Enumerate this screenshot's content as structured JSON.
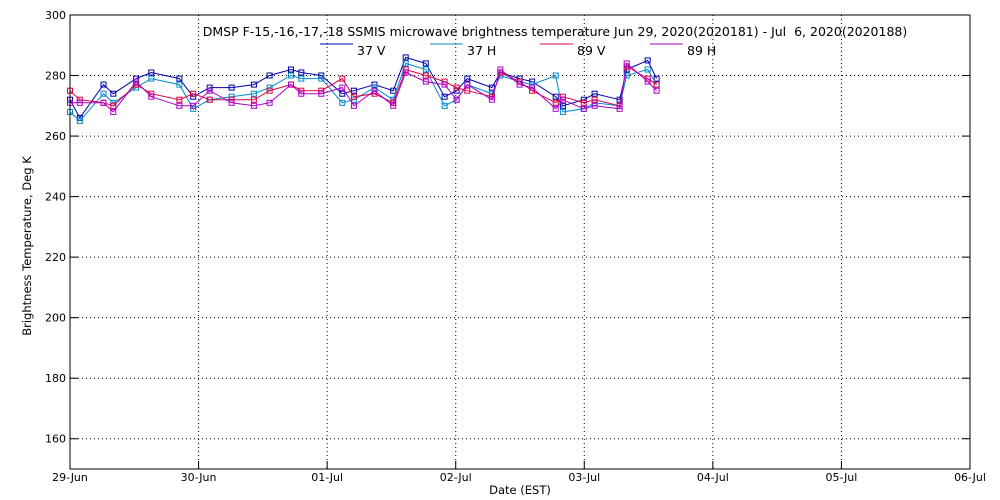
{
  "chart_data": {
    "type": "line",
    "title": "DMSP F-15,-16,-17,-18 SSMIS microwave brightness temperature Jun 29, 2020(2020181) - Jul  6, 2020(2020188)",
    "xlabel": "Date (EST)",
    "ylabel": "Brightness Temperature, Deg K",
    "ylim": [
      150,
      300
    ],
    "yticks": [
      160,
      180,
      200,
      220,
      240,
      260,
      280,
      300
    ],
    "xlim": [
      "2020-06-29T00:00",
      "2020-07-06T00:00"
    ],
    "xticks": [
      {
        "x": "2020-06-29T00:00",
        "label": "29-Jun"
      },
      {
        "x": "2020-06-30T00:00",
        "label": "30-Jun"
      },
      {
        "x": "2020-07-01T00:00",
        "label": "01-Jul"
      },
      {
        "x": "2020-07-02T00:00",
        "label": "02-Jul"
      },
      {
        "x": "2020-07-03T00:00",
        "label": "03-Jul"
      },
      {
        "x": "2020-07-04T00:00",
        "label": "04-Jul"
      },
      {
        "x": "2020-07-05T00:00",
        "label": "05-Jul"
      },
      {
        "x": "2020-07-06T00:00",
        "label": "06-Jul"
      }
    ],
    "grid": true,
    "legend_position": "top",
    "x": [
      "2020-06-29T00:00",
      "2020-06-29T01:50",
      "2020-06-29T06:15",
      "2020-06-29T08:05",
      "2020-06-29T12:20",
      "2020-06-29T15:10",
      "2020-06-29T20:25",
      "2020-06-29T23:00",
      "2020-06-30T02:05",
      "2020-06-30T06:10",
      "2020-06-30T10:20",
      "2020-06-30T13:15",
      "2020-06-30T17:15",
      "2020-06-30T19:10",
      "2020-06-30T22:55",
      "2020-07-01T02:50",
      "2020-07-01T05:00",
      "2020-07-01T08:50",
      "2020-07-01T12:20",
      "2020-07-01T14:40",
      "2020-07-01T18:25",
      "2020-07-01T21:55",
      "2020-07-02T00:10",
      "2020-07-02T02:10",
      "2020-07-02T06:45",
      "2020-07-02T08:20",
      "2020-07-02T11:55",
      "2020-07-02T14:15",
      "2020-07-02T18:40",
      "2020-07-02T20:00",
      "2020-07-02T23:55",
      "2020-07-03T01:55",
      "2020-07-03T06:35",
      "2020-07-03T07:55",
      "2020-07-03T11:50",
      "2020-07-03T13:30",
      "2020-07-03T17:45"
    ],
    "series": [
      {
        "name": "37 V",
        "color": "#0000aa",
        "values": [
          272,
          266,
          277,
          274,
          279,
          281,
          279,
          273,
          276,
          276,
          277,
          280,
          282,
          281,
          280,
          274,
          275,
          277,
          275,
          286,
          284,
          273,
          275,
          279,
          276,
          281,
          279,
          278,
          273,
          270,
          272,
          274,
          272,
          282,
          285,
          279,
          null
        ]
      },
      {
        "name": "37 H",
        "color": "#0088cc",
        "values": [
          268,
          265,
          274,
          271,
          276,
          279,
          277,
          269,
          272,
          273,
          274,
          276,
          280,
          279,
          279,
          271,
          272,
          276,
          272,
          284,
          282,
          270,
          272,
          277,
          274,
          280,
          278,
          277,
          280,
          268,
          269,
          271,
          270,
          280,
          282,
          277,
          null
        ]
      },
      {
        "name": "89 V",
        "color": "#dd0044",
        "values": [
          275,
          272,
          271,
          270,
          277,
          274,
          272,
          274,
          272,
          272,
          272,
          275,
          277,
          275,
          275,
          279,
          273,
          274,
          271,
          282,
          280,
          278,
          276,
          275,
          273,
          281,
          278,
          275,
          271,
          273,
          271,
          272,
          270,
          283,
          279,
          277,
          null
        ]
      },
      {
        "name": "89 H",
        "color": "#aa00cc",
        "values": [
          271,
          271,
          271,
          268,
          278,
          273,
          270,
          270,
          275,
          271,
          270,
          271,
          277,
          274,
          274,
          276,
          270,
          275,
          270,
          281,
          278,
          277,
          272,
          277,
          272,
          282,
          277,
          276,
          269,
          272,
          269,
          270,
          269,
          284,
          278,
          275,
          null
        ]
      }
    ]
  }
}
